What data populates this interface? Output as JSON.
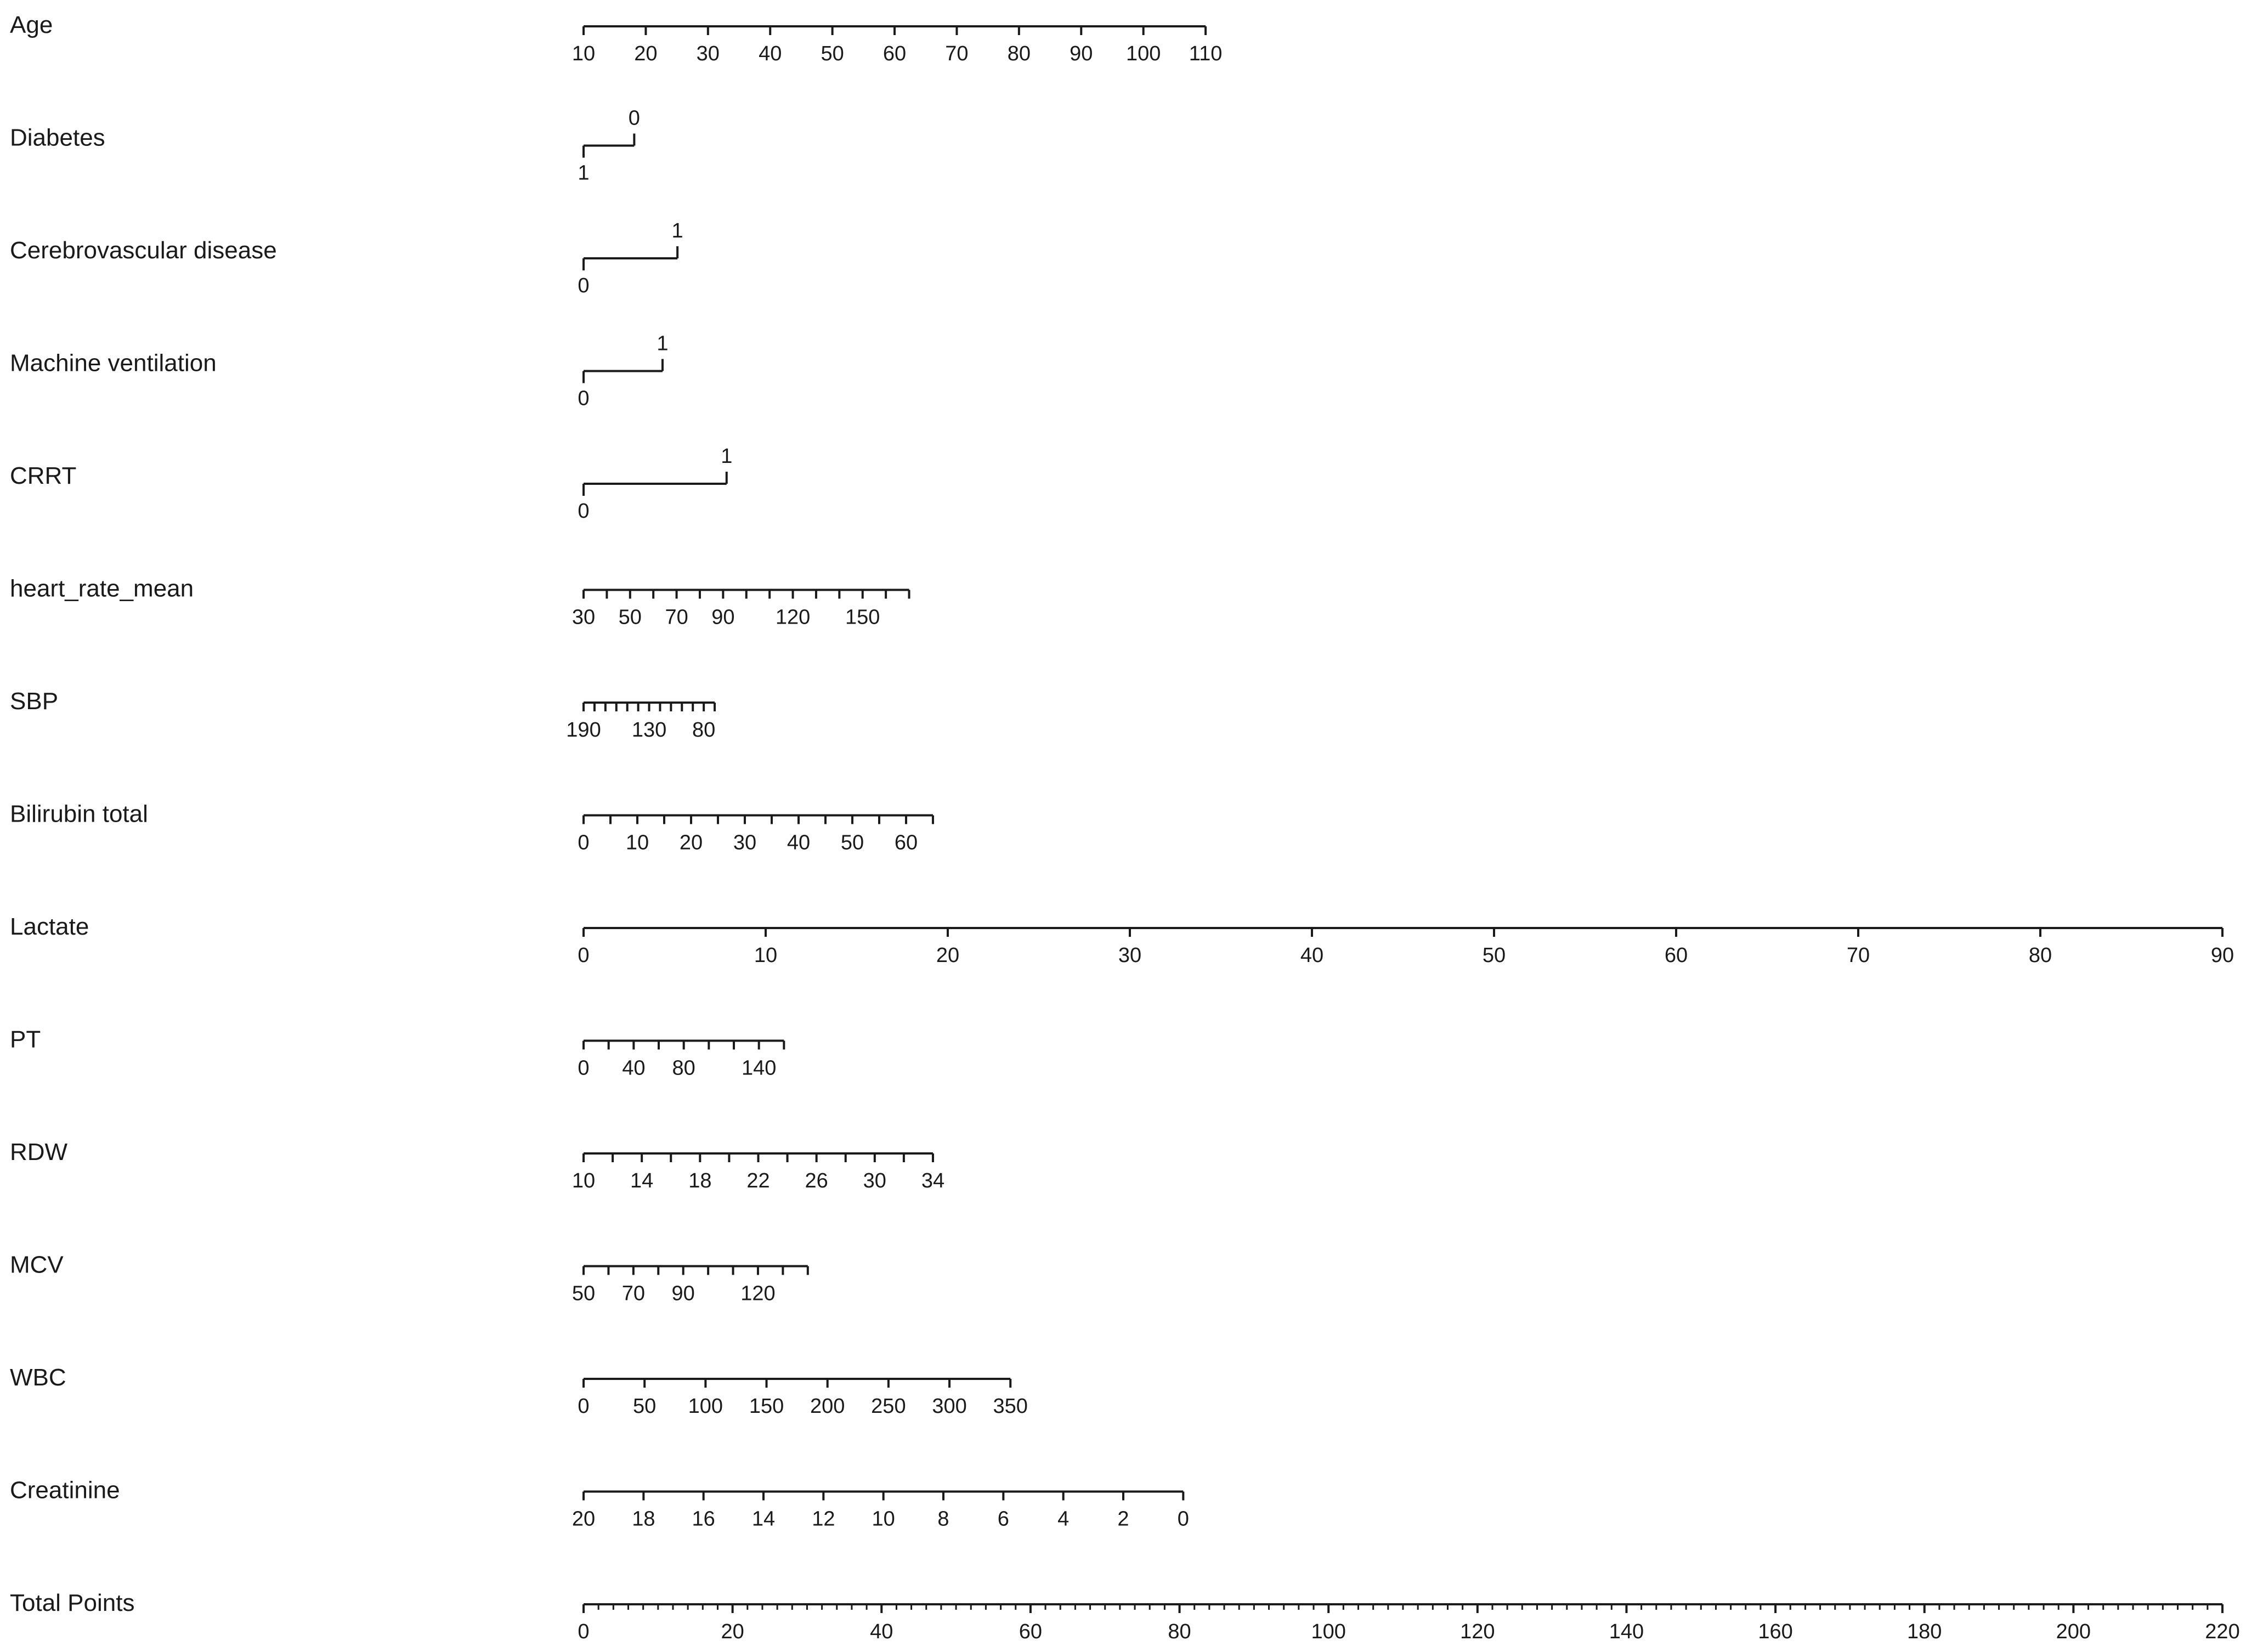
{
  "chart_data": {
    "type": "nomogram",
    "title": "",
    "variables": [
      {
        "name": "Age",
        "kind": "continuous",
        "min_value": 10,
        "max_value": 110,
        "points_at_min": 0,
        "points_at_max": 83.5,
        "ticks": [
          10,
          20,
          30,
          40,
          50,
          60,
          70,
          80,
          90,
          100,
          110
        ],
        "labels": [
          10,
          20,
          30,
          40,
          50,
          60,
          70,
          80,
          90,
          100,
          110
        ]
      },
      {
        "name": "Diabetes",
        "kind": "binary",
        "levels": [
          {
            "label": "1",
            "points": 0,
            "side": "below"
          },
          {
            "label": "0",
            "points": 6.8,
            "side": "above"
          }
        ]
      },
      {
        "name": "Cerebrovascular disease",
        "kind": "binary",
        "levels": [
          {
            "label": "0",
            "points": 0,
            "side": "below"
          },
          {
            "label": "1",
            "points": 12.6,
            "side": "above"
          }
        ]
      },
      {
        "name": "Machine ventilation",
        "kind": "binary",
        "levels": [
          {
            "label": "0",
            "points": 0,
            "side": "below"
          },
          {
            "label": "1",
            "points": 10.6,
            "side": "above"
          }
        ]
      },
      {
        "name": "CRRT",
        "kind": "binary",
        "levels": [
          {
            "label": "0",
            "points": 0,
            "side": "below"
          },
          {
            "label": "1",
            "points": 19.2,
            "side": "above"
          }
        ]
      },
      {
        "name": "heart_rate_mean",
        "kind": "continuous",
        "min_value": 30,
        "max_value": 170,
        "points_at_min": 0,
        "points_at_max": 43.7,
        "ticks": [
          30,
          40,
          50,
          60,
          70,
          80,
          90,
          100,
          110,
          120,
          130,
          140,
          150,
          160,
          170
        ],
        "labels": [
          30,
          50,
          70,
          90,
          120,
          150
        ]
      },
      {
        "name": "SBP",
        "kind": "continuous",
        "min_value": 190,
        "max_value": 70,
        "points_at_min": 0,
        "points_at_max": 17.6,
        "ticks": [
          190,
          180,
          170,
          160,
          150,
          140,
          130,
          120,
          110,
          100,
          90,
          80,
          70
        ],
        "labels": [
          190,
          130,
          80
        ]
      },
      {
        "name": "Bilirubin total",
        "kind": "continuous",
        "min_value": 0,
        "max_value": 65,
        "points_at_min": 0,
        "points_at_max": 46.9,
        "ticks": [
          0,
          5,
          10,
          15,
          20,
          25,
          30,
          35,
          40,
          45,
          50,
          55,
          60,
          65
        ],
        "labels": [
          0,
          10,
          20,
          30,
          40,
          50,
          60
        ]
      },
      {
        "name": "Lactate",
        "kind": "continuous",
        "min_value": 0,
        "max_value": 90,
        "points_at_min": 0,
        "points_at_max": 220,
        "ticks": [
          0,
          10,
          20,
          30,
          40,
          50,
          60,
          70,
          80,
          90
        ],
        "labels": [
          0,
          10,
          20,
          30,
          40,
          50,
          60,
          70,
          80,
          90
        ]
      },
      {
        "name": "PT",
        "kind": "continuous",
        "min_value": 0,
        "max_value": 160,
        "points_at_min": 0,
        "points_at_max": 26.9,
        "ticks": [
          0,
          20,
          40,
          60,
          80,
          100,
          120,
          140,
          160
        ],
        "labels": [
          0,
          40,
          80,
          140
        ]
      },
      {
        "name": "RDW",
        "kind": "continuous",
        "min_value": 10,
        "max_value": 34,
        "points_at_min": 0,
        "points_at_max": 46.9,
        "ticks": [
          10,
          12,
          14,
          16,
          18,
          20,
          22,
          24,
          26,
          28,
          30,
          32,
          34
        ],
        "labels": [
          10,
          14,
          18,
          22,
          26,
          30,
          34
        ]
      },
      {
        "name": "MCV",
        "kind": "continuous",
        "min_value": 50,
        "max_value": 140,
        "points_at_min": 0,
        "points_at_max": 30.1,
        "ticks": [
          50,
          60,
          70,
          80,
          90,
          100,
          110,
          120,
          130,
          140
        ],
        "labels": [
          50,
          70,
          90,
          120
        ]
      },
      {
        "name": "WBC",
        "kind": "continuous",
        "min_value": 0,
        "max_value": 350,
        "points_at_min": 0,
        "points_at_max": 57.3,
        "ticks": [
          0,
          50,
          100,
          150,
          200,
          250,
          300,
          350
        ],
        "labels": [
          0,
          50,
          100,
          150,
          200,
          250,
          300,
          350
        ]
      },
      {
        "name": "Creatinine",
        "kind": "continuous",
        "min_value": 20,
        "max_value": 0,
        "points_at_min": 0,
        "points_at_max": 80.5,
        "ticks": [
          20,
          18,
          16,
          14,
          12,
          10,
          8,
          6,
          4,
          2,
          0
        ],
        "labels": [
          20,
          18,
          16,
          14,
          12,
          10,
          8,
          6,
          4,
          2,
          0
        ]
      }
    ],
    "total_points": {
      "name": "Total Points",
      "min": 0,
      "max": 220,
      "major_ticks": [
        0,
        20,
        40,
        60,
        80,
        100,
        120,
        140,
        160,
        180,
        200,
        220
      ],
      "minor_step": 2
    },
    "points_range": [
      0,
      220
    ],
    "grid": false,
    "legend": "none"
  }
}
